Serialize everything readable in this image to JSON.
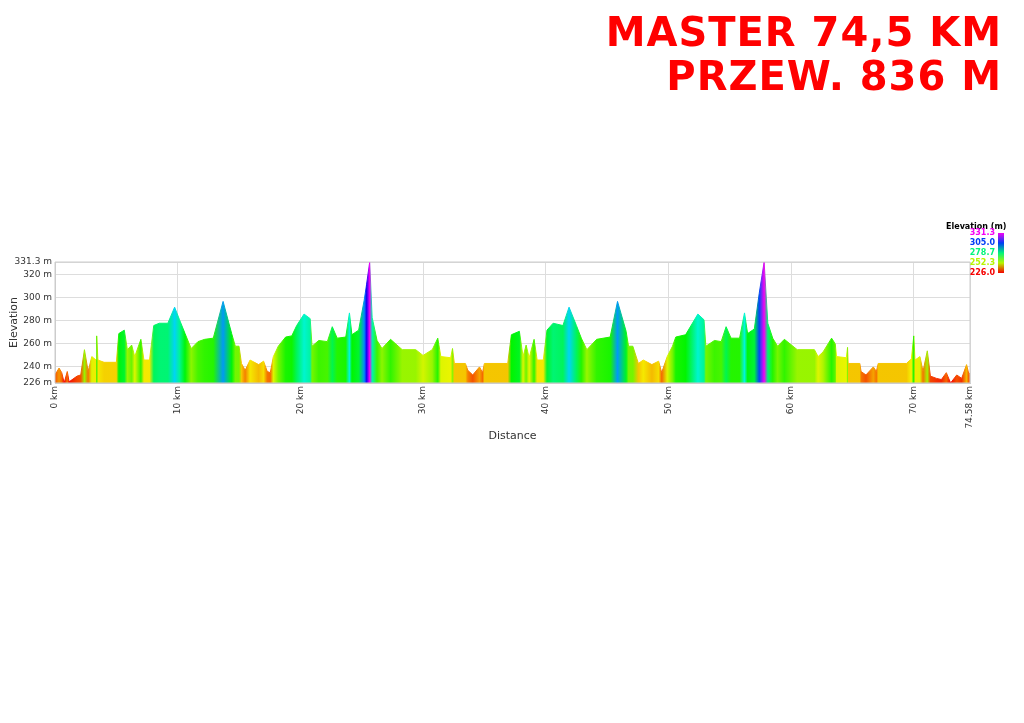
{
  "chart_data": {
    "type": "area",
    "title": "MASTER 74,5 KM",
    "subtitle": "PRZEW. 836 M",
    "xlabel": "Distance",
    "ylabel": "Elevation",
    "clabel": "Elevation (m)",
    "clim": [
      226,
      331.3
    ],
    "cticks": [
      {
        "value": 226,
        "label": "226.0"
      },
      {
        "value": 252.3,
        "label": "252.3"
      },
      {
        "value": 278.7,
        "label": "278.7"
      },
      {
        "value": 305,
        "label": "305.0"
      },
      {
        "value": 331.3,
        "label": "331.3"
      }
    ],
    "x": [
      0,
      0.33,
      0.55,
      0.75,
      1.0,
      1.15,
      1.8,
      2.1,
      2.4,
      2.7,
      3.0,
      3.35,
      3.4,
      3.5,
      4.0,
      5.0,
      5.2,
      5.65,
      5.9,
      6.25,
      6.5,
      7.0,
      7.25,
      7.7,
      8.05,
      8.5,
      9.2,
      9.75,
      10.15,
      10.6,
      11.1,
      11.65,
      12.2,
      12.9,
      13.7,
      14.4,
      14.7,
      15.0,
      15.2,
      15.5,
      15.9,
      16.6,
      17.0,
      17.3,
      17.55,
      17.8,
      18.2,
      18.8,
      19.3,
      19.7,
      20.3,
      20.8,
      20.95,
      21.5,
      22.2,
      22.6,
      23.0,
      23.7,
      24.0,
      24.2,
      24.75,
      25.2,
      25.4,
      25.65,
      25.85,
      26.25,
      26.65,
      27.35,
      28.3,
      29.4,
      30.0,
      30.75,
      31.2,
      31.45,
      32.25,
      32.4,
      32.55,
      33.45,
      33.65,
      34.05,
      34.6,
      34.85,
      35.0,
      36.9,
      37.2,
      37.85,
      38.15,
      38.4,
      38.65,
      39.05,
      39.3,
      39.8,
      40.1,
      40.6,
      41.4,
      41.9,
      42.5,
      42.9,
      43.35,
      44.15,
      45.25,
      45.85,
      46.55,
      46.75,
      47.1,
      47.55,
      47.95,
      48.65,
      49.2,
      49.45,
      49.9,
      50.33,
      50.6,
      51.4,
      52.4,
      52.9,
      53.05,
      53.75,
      54.3,
      54.7,
      55.1,
      55.8,
      56.2,
      56.45,
      57.0,
      57.4,
      57.8,
      58.1,
      58.5,
      58.9,
      59.45,
      60.5,
      61.9,
      62.2,
      62.6,
      63.3,
      63.6,
      63.7,
      64.5,
      64.6,
      64.65,
      65.6,
      65.7,
      66.1,
      66.7,
      66.95,
      67.1,
      69.4,
      69.8,
      70.0,
      70.1,
      70.5,
      70.75,
      71.1,
      71.35,
      71.85,
      72.25,
      72.65,
      73.0,
      73.5,
      73.9,
      74.3,
      74.5,
      74.58
    ],
    "values": [
      233,
      239,
      235,
      226,
      236,
      227,
      232,
      233,
      255,
      236,
      249,
      246,
      267,
      246,
      244,
      244,
      269,
      272,
      255,
      259,
      249,
      264,
      246,
      246,
      276,
      278,
      278,
      292,
      281,
      269,
      256,
      262,
      264,
      265,
      297,
      269,
      258,
      258,
      243,
      237,
      246,
      242,
      245,
      236,
      235,
      249,
      258,
      266,
      267,
      276,
      286,
      282,
      258,
      263,
      262,
      275,
      265,
      266,
      287,
      268,
      272,
      298,
      312,
      331.3,
      283,
      263,
      256,
      264,
      255,
      255,
      250,
      255,
      265,
      249,
      248,
      256,
      243,
      243,
      237,
      233,
      240,
      235,
      243,
      243,
      268,
      271,
      249,
      259,
      248,
      264,
      246,
      246,
      272,
      278,
      276,
      292,
      276,
      265,
      255,
      264,
      266,
      297,
      271,
      258,
      258,
      243,
      246,
      242,
      245,
      235,
      249,
      258,
      266,
      268,
      286,
      281,
      258,
      263,
      262,
      275,
      265,
      265,
      287,
      269,
      273,
      304,
      331.3,
      278,
      265,
      258,
      264,
      255,
      255,
      249,
      253,
      265,
      260,
      249,
      248,
      257,
      243,
      243,
      236,
      233,
      240,
      236,
      243,
      243,
      247,
      267,
      246,
      249,
      236,
      254,
      232,
      230,
      229,
      235,
      226,
      233,
      230,
      242,
      233,
      235
    ],
    "xlim": [
      0,
      74.58
    ],
    "ylim": [
      226,
      331.3
    ],
    "xticks": [
      {
        "value": 0,
        "label": "0 km"
      },
      {
        "value": 10,
        "label": "10 km"
      },
      {
        "value": 20,
        "label": "20 km"
      },
      {
        "value": 30,
        "label": "30 km"
      },
      {
        "value": 40,
        "label": "40 km"
      },
      {
        "value": 50,
        "label": "50 km"
      },
      {
        "value": 60,
        "label": "60 km"
      },
      {
        "value": 70,
        "label": "70 km"
      },
      {
        "value": 74.58,
        "label": "74.58 km"
      }
    ],
    "yticks": [
      {
        "value": 226,
        "label": "226 m"
      },
      {
        "value": 240,
        "label": "240 m"
      },
      {
        "value": 260,
        "label": "260 m"
      },
      {
        "value": 280,
        "label": "280 m"
      },
      {
        "value": 300,
        "label": "300 m"
      },
      {
        "value": 320,
        "label": "320 m"
      },
      {
        "value": 331.3,
        "label": "331.3 m"
      }
    ],
    "grid": true,
    "legend": false
  }
}
